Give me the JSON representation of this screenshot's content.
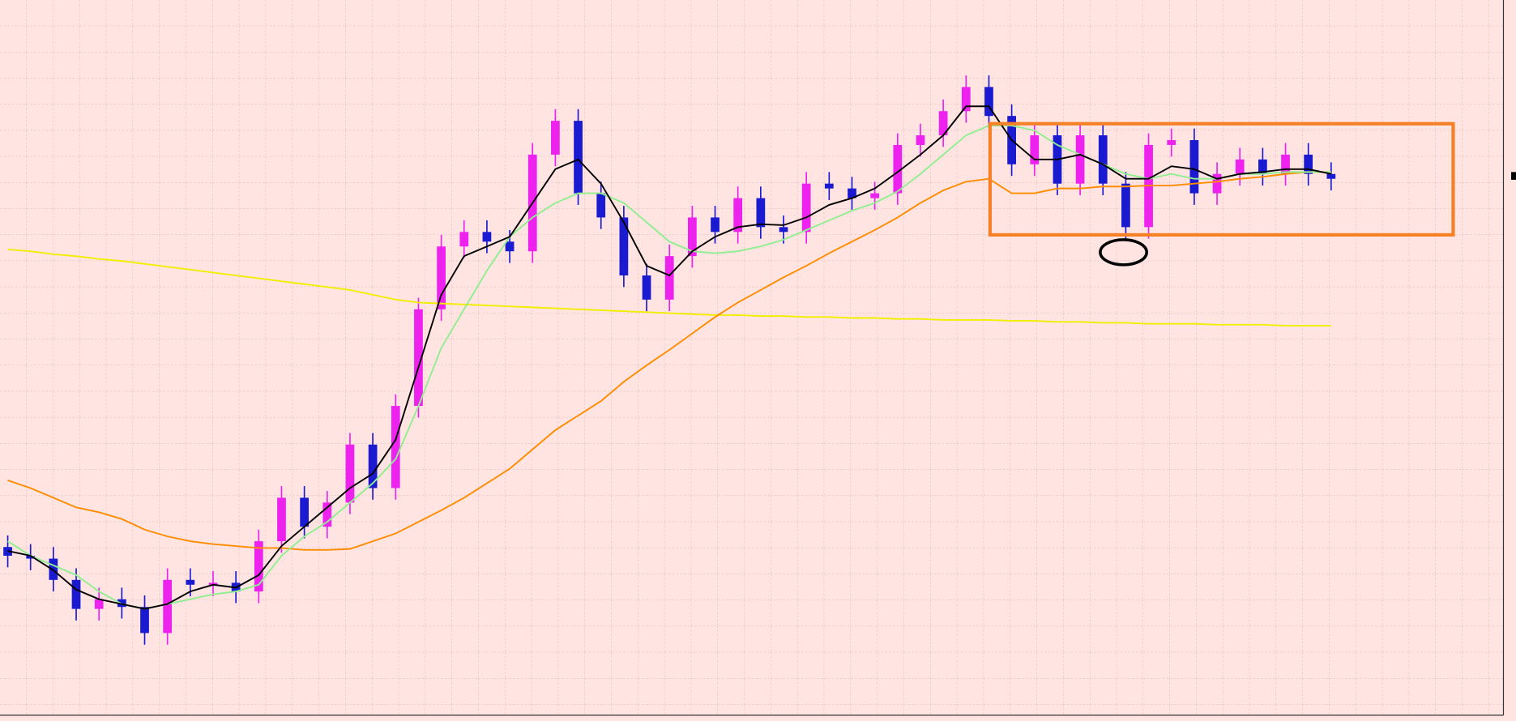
{
  "chart_data": {
    "type": "candlestick",
    "ylim": [
      0,
      746
    ],
    "grid": true,
    "up_color": "#ee22ee",
    "down_color": "#1a1ad0",
    "open": [
      180,
      171,
      168,
      146,
      116,
      126,
      118,
      91,
      146,
      141,
      143,
      134,
      186,
      231,
      201,
      226,
      286,
      241,
      326,
      426,
      491,
      506,
      496,
      486,
      586,
      621,
      546,
      521,
      461,
      436,
      481,
      521,
      506,
      541,
      511,
      506,
      556,
      551,
      541,
      546,
      596,
      606,
      631,
      656,
      626,
      576,
      606,
      556,
      606,
      556,
      511,
      596,
      601,
      546,
      566,
      581,
      566,
      586,
      566
    ],
    "high": [
      192,
      183,
      180,
      158,
      138,
      138,
      130,
      158,
      158,
      155,
      155,
      198,
      243,
      243,
      238,
      298,
      298,
      338,
      438,
      503,
      518,
      518,
      508,
      598,
      633,
      633,
      558,
      533,
      473,
      493,
      533,
      533,
      553,
      553,
      523,
      568,
      568,
      563,
      558,
      608,
      618,
      643,
      668,
      668,
      638,
      618,
      618,
      618,
      618,
      568,
      608,
      613,
      613,
      578,
      593,
      593,
      598,
      598,
      578
    ],
    "low": [
      159,
      156,
      134,
      104,
      104,
      106,
      79,
      79,
      129,
      129,
      122,
      122,
      174,
      189,
      189,
      214,
      229,
      229,
      314,
      414,
      479,
      484,
      474,
      474,
      574,
      534,
      509,
      449,
      424,
      424,
      469,
      494,
      494,
      499,
      494,
      494,
      539,
      529,
      529,
      534,
      584,
      594,
      619,
      614,
      564,
      564,
      544,
      544,
      544,
      499,
      499,
      584,
      534,
      534,
      554,
      554,
      554,
      554,
      549
    ],
    "close": [
      171,
      168,
      146,
      116,
      126,
      118,
      91,
      146,
      141,
      143,
      134,
      186,
      231,
      201,
      226,
      286,
      241,
      326,
      426,
      491,
      506,
      496,
      486,
      586,
      621,
      546,
      521,
      461,
      436,
      481,
      521,
      506,
      541,
      511,
      506,
      556,
      551,
      541,
      546,
      596,
      606,
      631,
      656,
      626,
      576,
      606,
      556,
      606,
      556,
      511,
      596,
      601,
      546,
      566,
      581,
      566,
      586,
      566,
      561
    ],
    "series": [
      {
        "color": "#f2ee00",
        "values": [
          488,
          486,
          483,
          481,
          478,
          476,
          473,
          470,
          467,
          464,
          461,
          458,
          455,
          452,
          449,
          446,
          441,
          436,
          433,
          432,
          431,
          430,
          429,
          428,
          427,
          426,
          425,
          424,
          423,
          422,
          421,
          420,
          420,
          419,
          419,
          418,
          418,
          417,
          417,
          416,
          416,
          415,
          415,
          415,
          414,
          414,
          413,
          413,
          412,
          412,
          411,
          411,
          411,
          410,
          410,
          410,
          409,
          409,
          409
        ]
      },
      {
        "color": "#ff8c00",
        "values": [
          249,
          241,
          231,
          221,
          216,
          209,
          198,
          191,
          186,
          183,
          181,
          179,
          179,
          177,
          177,
          178,
          186,
          194,
          206,
          218,
          231,
          246,
          261,
          281,
          301,
          316,
          331,
          351,
          368,
          384,
          401,
          418,
          433,
          446,
          459,
          471,
          484,
          496,
          508,
          521,
          536,
          549,
          558,
          561,
          546,
          546,
          551,
          551,
          553,
          553,
          554,
          554,
          556,
          558,
          561,
          563,
          566,
          568,
          568
        ]
      },
      {
        "color": "#90ee90",
        "values": [
          186,
          171,
          161,
          151,
          134,
          121,
          116,
          121,
          126,
          131,
          134,
          141,
          171,
          191,
          206,
          226,
          246,
          271,
          326,
          386,
          426,
          466,
          501,
          521,
          536,
          546,
          546,
          536,
          516,
          496,
          486,
          484,
          486,
          491,
          498,
          508,
          518,
          528,
          536,
          548,
          566,
          586,
          606,
          616,
          616,
          611,
          596,
          586,
          576,
          566,
          561,
          566,
          561,
          561,
          566,
          566,
          568,
          568,
          568
        ]
      },
      {
        "color": "#000000",
        "values": [
          176,
          171,
          156,
          136,
          126,
          121,
          116,
          121,
          134,
          141,
          138,
          151,
          181,
          201,
          221,
          241,
          256,
          291,
          366,
          441,
          481,
          491,
          501,
          536,
          571,
          581,
          556,
          516,
          471,
          461,
          486,
          501,
          511,
          514,
          513,
          521,
          534,
          541,
          551,
          568,
          586,
          606,
          636,
          636,
          601,
          581,
          581,
          586,
          576,
          561,
          561,
          574,
          571,
          561,
          566,
          568,
          571,
          571,
          566
        ]
      }
    ]
  }
}
